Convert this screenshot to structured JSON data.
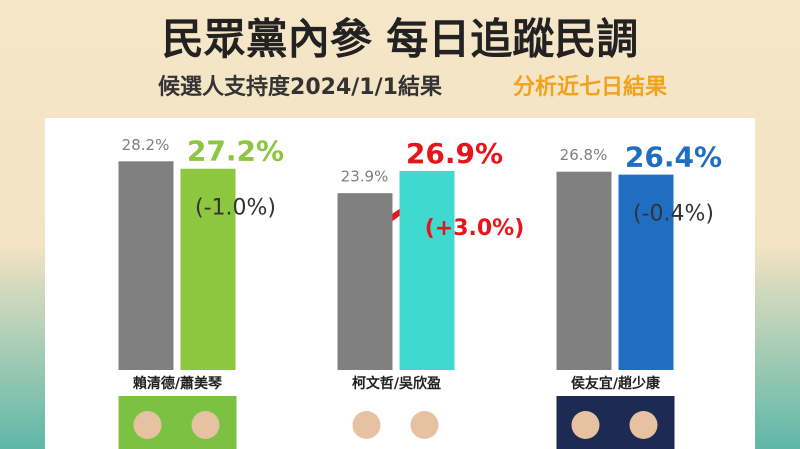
{
  "chart_data": {
    "type": "bar",
    "title": "民眾黨內參 每日追蹤民調",
    "subtitle": "候選人支持度2024/1/1結果",
    "subtitle_note": "分析近七日結果",
    "categories": [
      "賴清德/蕭美琴",
      "柯文哲/吳欣盈",
      "侯友宜/趙少康"
    ],
    "series": [
      {
        "color": "#808080",
        "values": [
          28.2,
          23.9,
          26.8
        ],
        "value_labels": [
          "28.2%",
          "23.9%",
          "26.8%"
        ]
      },
      {
        "colors": [
          "#8dc63f",
          "#3fd9d0",
          "#1f6ec2"
        ],
        "label_colors": [
          "#8dc63f",
          "#e8141c",
          "#1f6ec2"
        ],
        "values": [
          27.2,
          26.9,
          26.4
        ],
        "value_labels": [
          "27.2%",
          "26.9%",
          "26.4%"
        ]
      }
    ],
    "annotations": [
      "(-1.0%)",
      "(+3.0%)",
      "(-0.4%)"
    ],
    "annotation_colors": [
      "#333333",
      "#e8141c",
      "#333333"
    ],
    "ylim": [
      0,
      50
    ]
  }
}
